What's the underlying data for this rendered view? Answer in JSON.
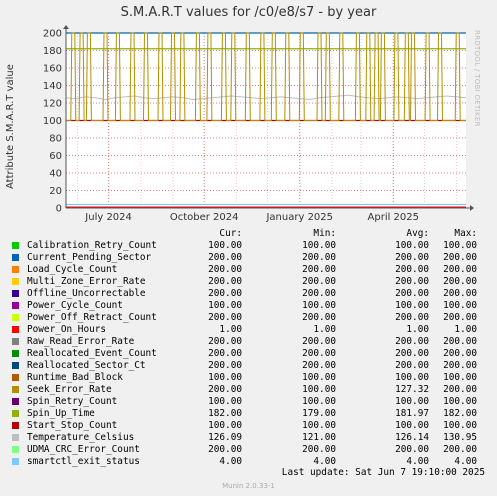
{
  "title": "S.M.A.R.T values for /c0/e8/s7 - by year",
  "side_label": "RRDTOOL / TOBI OETIKER",
  "footer": "Munin 2.0.33-1",
  "last_update": "Last update:  Sat Jun  7 19:10:00 2025",
  "legend_headers": {
    "cur": "Cur:",
    "min": "Min:",
    "avg": "Avg:",
    "max": "Max:"
  },
  "legend": [
    {
      "name": "Calibration_Retry_Count",
      "color": "#00cc00",
      "cur": "100.00",
      "min": "100.00",
      "avg": "100.00",
      "max": "100.00"
    },
    {
      "name": "Current_Pending_Sector",
      "color": "#0066b3",
      "cur": "200.00",
      "min": "200.00",
      "avg": "200.00",
      "max": "200.00"
    },
    {
      "name": "Load_Cycle_Count",
      "color": "#ff8000",
      "cur": "200.00",
      "min": "200.00",
      "avg": "200.00",
      "max": "200.00"
    },
    {
      "name": "Multi_Zone_Error_Rate",
      "color": "#ffcc00",
      "cur": "200.00",
      "min": "200.00",
      "avg": "200.00",
      "max": "200.00"
    },
    {
      "name": "Offline_Uncorrectable",
      "color": "#330099",
      "cur": "200.00",
      "min": "200.00",
      "avg": "200.00",
      "max": "200.00"
    },
    {
      "name": "Power_Cycle_Count",
      "color": "#990099",
      "cur": "100.00",
      "min": "100.00",
      "avg": "100.00",
      "max": "100.00"
    },
    {
      "name": "Power_Off_Retract_Count",
      "color": "#ccff00",
      "cur": "200.00",
      "min": "200.00",
      "avg": "200.00",
      "max": "200.00"
    },
    {
      "name": "Power_On_Hours",
      "color": "#ff0000",
      "cur": "1.00",
      "min": "1.00",
      "avg": "1.00",
      "max": "1.00"
    },
    {
      "name": "Raw_Read_Error_Rate",
      "color": "#808080",
      "cur": "200.00",
      "min": "200.00",
      "avg": "200.00",
      "max": "200.00"
    },
    {
      "name": "Reallocated_Event_Count",
      "color": "#008f00",
      "cur": "200.00",
      "min": "200.00",
      "avg": "200.00",
      "max": "200.00"
    },
    {
      "name": "Reallocated_Sector_Ct",
      "color": "#00487d",
      "cur": "200.00",
      "min": "200.00",
      "avg": "200.00",
      "max": "200.00"
    },
    {
      "name": "Runtime_Bad_Block",
      "color": "#b35a00",
      "cur": "100.00",
      "min": "100.00",
      "avg": "100.00",
      "max": "100.00"
    },
    {
      "name": "Seek_Error_Rate",
      "color": "#b38f00",
      "cur": "200.00",
      "min": "100.00",
      "avg": "127.32",
      "max": "200.00"
    },
    {
      "name": "Spin_Retry_Count",
      "color": "#6b006b",
      "cur": "100.00",
      "min": "100.00",
      "avg": "100.00",
      "max": "100.00"
    },
    {
      "name": "Spin_Up_Time",
      "color": "#8fb300",
      "cur": "182.00",
      "min": "179.00",
      "avg": "181.97",
      "max": "182.00"
    },
    {
      "name": "Start_Stop_Count",
      "color": "#b30000",
      "cur": "100.00",
      "min": "100.00",
      "avg": "100.00",
      "max": "100.00"
    },
    {
      "name": "Temperature_Celsius",
      "color": "#bebebe",
      "cur": "126.09",
      "min": "121.00",
      "avg": "126.14",
      "max": "130.95"
    },
    {
      "name": "UDMA_CRC_Error_Count",
      "color": "#80ff80",
      "cur": "200.00",
      "min": "200.00",
      "avg": "200.00",
      "max": "200.00"
    },
    {
      "name": "smartctl_exit_status",
      "color": "#80c9ff",
      "cur": "4.00",
      "min": "4.00",
      "avg": "4.00",
      "max": "4.00"
    }
  ],
  "chart_data": {
    "type": "line",
    "ylabel": "Attribute S.M.A.R.T value",
    "ylim": [
      0,
      200
    ],
    "yticks": [
      0,
      20,
      40,
      60,
      80,
      100,
      120,
      140,
      160,
      180,
      200
    ],
    "x_tick_labels": [
      "July 2024",
      "October 2024",
      "January 2025",
      "April 2025"
    ],
    "x_tick_dates": [
      "2024-07-01",
      "2024-10-01",
      "2025-01-01",
      "2025-04-01"
    ],
    "xlim": [
      "2024-05-21",
      "2025-06-10"
    ],
    "grid": true,
    "constant_series": [
      {
        "name": "Current_Pending_Sector",
        "value": 200
      },
      {
        "name": "Spin_Up_Time",
        "value": 182
      },
      {
        "name": "Start_Stop_Count",
        "value": 100
      },
      {
        "name": "Power_On_Hours",
        "value": 1
      },
      {
        "name": "smartctl_exit_status",
        "value": 4
      }
    ],
    "temperature_series": {
      "name": "Temperature_Celsius",
      "values": [
        126,
        125,
        127,
        126,
        124,
        126,
        127,
        128,
        126,
        125,
        126,
        127,
        126,
        124,
        125,
        126,
        127,
        128,
        127,
        126,
        125,
        126,
        127,
        126,
        125,
        124,
        126,
        127,
        128,
        129,
        127,
        126,
        125,
        126,
        127,
        126,
        125,
        126,
        127,
        128,
        127,
        126
      ]
    },
    "seek_error_spikes": {
      "name": "Seek_Error_Rate",
      "base": 100,
      "peak": 200,
      "spike_dates": [
        "2024-05-28",
        "2024-06-05",
        "2024-06-12",
        "2024-06-28",
        "2024-07-10",
        "2024-07-24",
        "2024-08-06",
        "2024-08-20",
        "2024-09-01",
        "2024-09-10",
        "2024-09-25",
        "2024-10-06",
        "2024-10-20",
        "2024-10-29",
        "2024-11-12",
        "2024-11-26",
        "2024-12-07",
        "2024-12-20",
        "2025-01-03",
        "2025-01-20",
        "2025-01-28",
        "2025-02-10",
        "2025-02-26",
        "2025-03-08",
        "2025-03-16",
        "2025-03-22",
        "2025-04-04",
        "2025-04-14",
        "2025-04-20",
        "2025-05-04",
        "2025-05-16",
        "2025-06-02"
      ]
    }
  }
}
